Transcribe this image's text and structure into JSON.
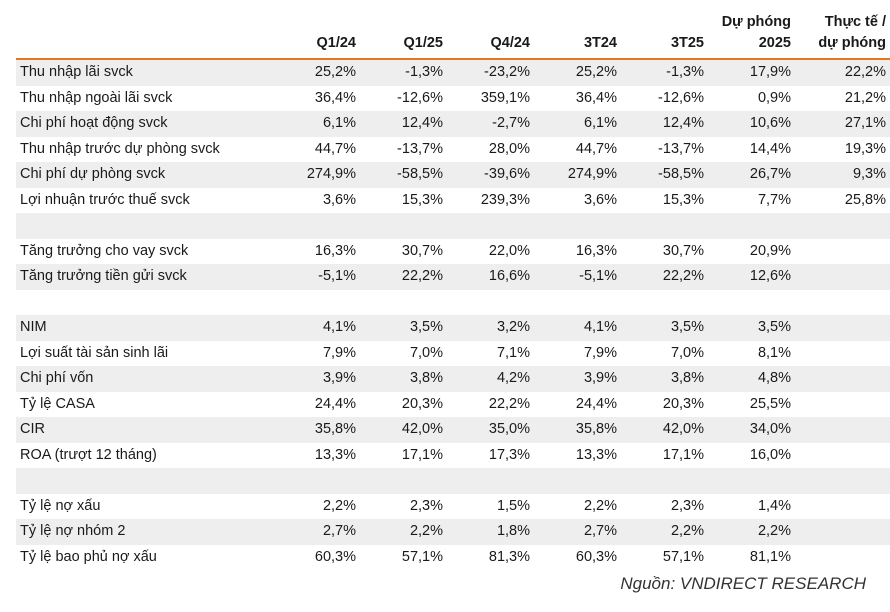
{
  "header": {
    "col0": "",
    "cols": [
      "Q1/24",
      "Q1/25",
      "Q4/24",
      "3T24",
      "3T25"
    ],
    "forecast_line1": "Dự phóng",
    "forecast_line2": "2025",
    "actual_line1": "Thực tế /",
    "actual_line2": "dự phóng"
  },
  "rows": [
    {
      "label": "Thu nhập lãi svck",
      "values": [
        "25,2%",
        "-1,3%",
        "-23,2%",
        "25,2%",
        "-1,3%",
        "17,9%",
        "22,2%"
      ]
    },
    {
      "label": "Thu nhập ngoài lãi svck",
      "values": [
        "36,4%",
        "-12,6%",
        "359,1%",
        "36,4%",
        "-12,6%",
        "0,9%",
        "21,2%"
      ]
    },
    {
      "label": "Chi phí hoạt động svck",
      "values": [
        "6,1%",
        "12,4%",
        "-2,7%",
        "6,1%",
        "12,4%",
        "10,6%",
        "27,1%"
      ]
    },
    {
      "label": "Thu nhập trước dự phòng svck",
      "values": [
        "44,7%",
        "-13,7%",
        "28,0%",
        "44,7%",
        "-13,7%",
        "14,4%",
        "19,3%"
      ]
    },
    {
      "label": "Chi phí dự phòng svck",
      "values": [
        "274,9%",
        "-58,5%",
        "-39,6%",
        "274,9%",
        "-58,5%",
        "26,7%",
        "9,3%"
      ]
    },
    {
      "label": "Lợi nhuận trước thuế svck",
      "values": [
        "3,6%",
        "15,3%",
        "239,3%",
        "3,6%",
        "15,3%",
        "7,7%",
        "25,8%"
      ]
    },
    {
      "label": "",
      "values": [
        "",
        "",
        "",
        "",
        "",
        "",
        ""
      ]
    },
    {
      "label": "Tăng trưởng cho vay svck",
      "values": [
        "16,3%",
        "30,7%",
        "22,0%",
        "16,3%",
        "30,7%",
        "20,9%",
        ""
      ]
    },
    {
      "label": "Tăng trưởng tiền gửi svck",
      "values": [
        "-5,1%",
        "22,2%",
        "16,6%",
        "-5,1%",
        "22,2%",
        "12,6%",
        ""
      ]
    },
    {
      "label": "",
      "values": [
        "",
        "",
        "",
        "",
        "",
        "",
        ""
      ]
    },
    {
      "label": "NIM",
      "values": [
        "4,1%",
        "3,5%",
        "3,2%",
        "4,1%",
        "3,5%",
        "3,5%",
        ""
      ]
    },
    {
      "label": "Lợi suất tài sản sinh lãi",
      "values": [
        "7,9%",
        "7,0%",
        "7,1%",
        "7,9%",
        "7,0%",
        "8,1%",
        ""
      ]
    },
    {
      "label": "Chi phí vốn",
      "values": [
        "3,9%",
        "3,8%",
        "4,2%",
        "3,9%",
        "3,8%",
        "4,8%",
        ""
      ]
    },
    {
      "label": "Tỷ lệ CASA",
      "values": [
        "24,4%",
        "20,3%",
        "22,2%",
        "24,4%",
        "20,3%",
        "25,5%",
        ""
      ]
    },
    {
      "label": "CIR",
      "values": [
        "35,8%",
        "42,0%",
        "35,0%",
        "35,8%",
        "42,0%",
        "34,0%",
        ""
      ]
    },
    {
      "label": "ROA (trượt 12 tháng)",
      "values": [
        "13,3%",
        "17,1%",
        "17,3%",
        "13,3%",
        "17,1%",
        "16,0%",
        ""
      ]
    },
    {
      "label": "",
      "values": [
        "",
        "",
        "",
        "",
        "",
        "",
        ""
      ]
    },
    {
      "label": "Tỷ lệ nợ xấu",
      "values": [
        "2,2%",
        "2,3%",
        "1,5%",
        "2,2%",
        "2,3%",
        "1,4%",
        ""
      ]
    },
    {
      "label": "Tỷ lệ nợ nhóm 2",
      "values": [
        "2,7%",
        "2,2%",
        "1,8%",
        "2,7%",
        "2,2%",
        "2,2%",
        ""
      ]
    },
    {
      "label": "Tỷ lệ bao phủ nợ xấu",
      "values": [
        "60,3%",
        "57,1%",
        "81,3%",
        "60,3%",
        "57,1%",
        "81,1%",
        ""
      ]
    }
  ],
  "source": "Nguồn: VNDIRECT RESEARCH"
}
